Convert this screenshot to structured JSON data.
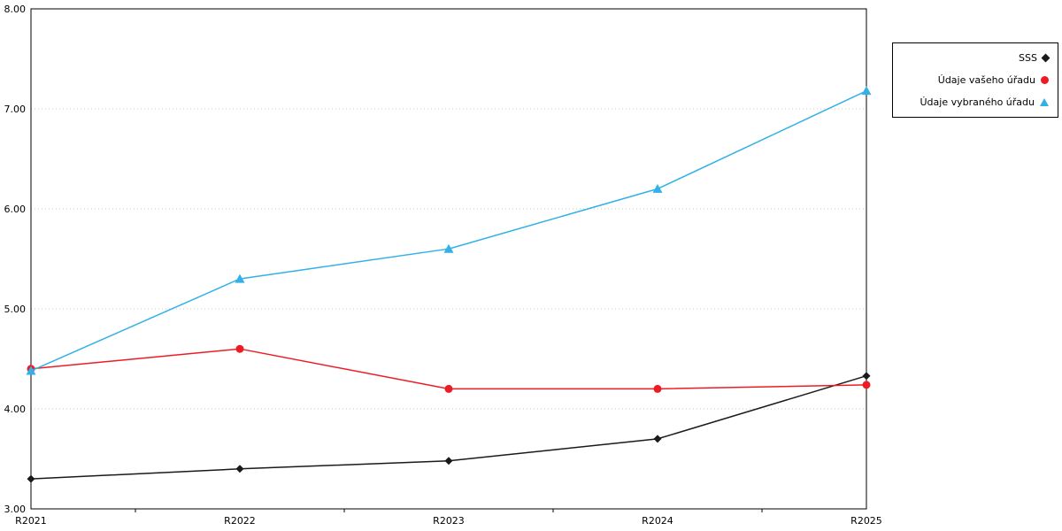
{
  "chart_data": {
    "type": "line",
    "title": "",
    "xlabel": "",
    "ylabel": "",
    "categories": [
      "R2021",
      "R2022",
      "R2023",
      "R2024",
      "R2025"
    ],
    "series": [
      {
        "name": "SSS",
        "marker": "diamond",
        "color": "#1a1a1a",
        "values": [
          3.3,
          3.4,
          3.48,
          3.7,
          4.33
        ]
      },
      {
        "name": "Údaje vašeho úřadu",
        "marker": "circle",
        "color": "#ed1c24",
        "values": [
          4.4,
          4.6,
          4.2,
          4.2,
          4.24
        ]
      },
      {
        "name": "Údaje vybraného úřadu",
        "marker": "triangle",
        "color": "#33b1e7",
        "values": [
          4.38,
          5.3,
          5.6,
          6.2,
          7.18
        ]
      }
    ],
    "ylim": [
      3,
      8
    ],
    "ytick_step": 1,
    "ytick_labels": [
      "3.00",
      "4.00",
      "5.00",
      "6.00",
      "7.00",
      "8.00"
    ],
    "grid": "dotted horizontal",
    "legend_position": "top-right",
    "colors": {
      "grid": "#c8c8c8",
      "axis": "#000000",
      "text": "#000000"
    }
  }
}
